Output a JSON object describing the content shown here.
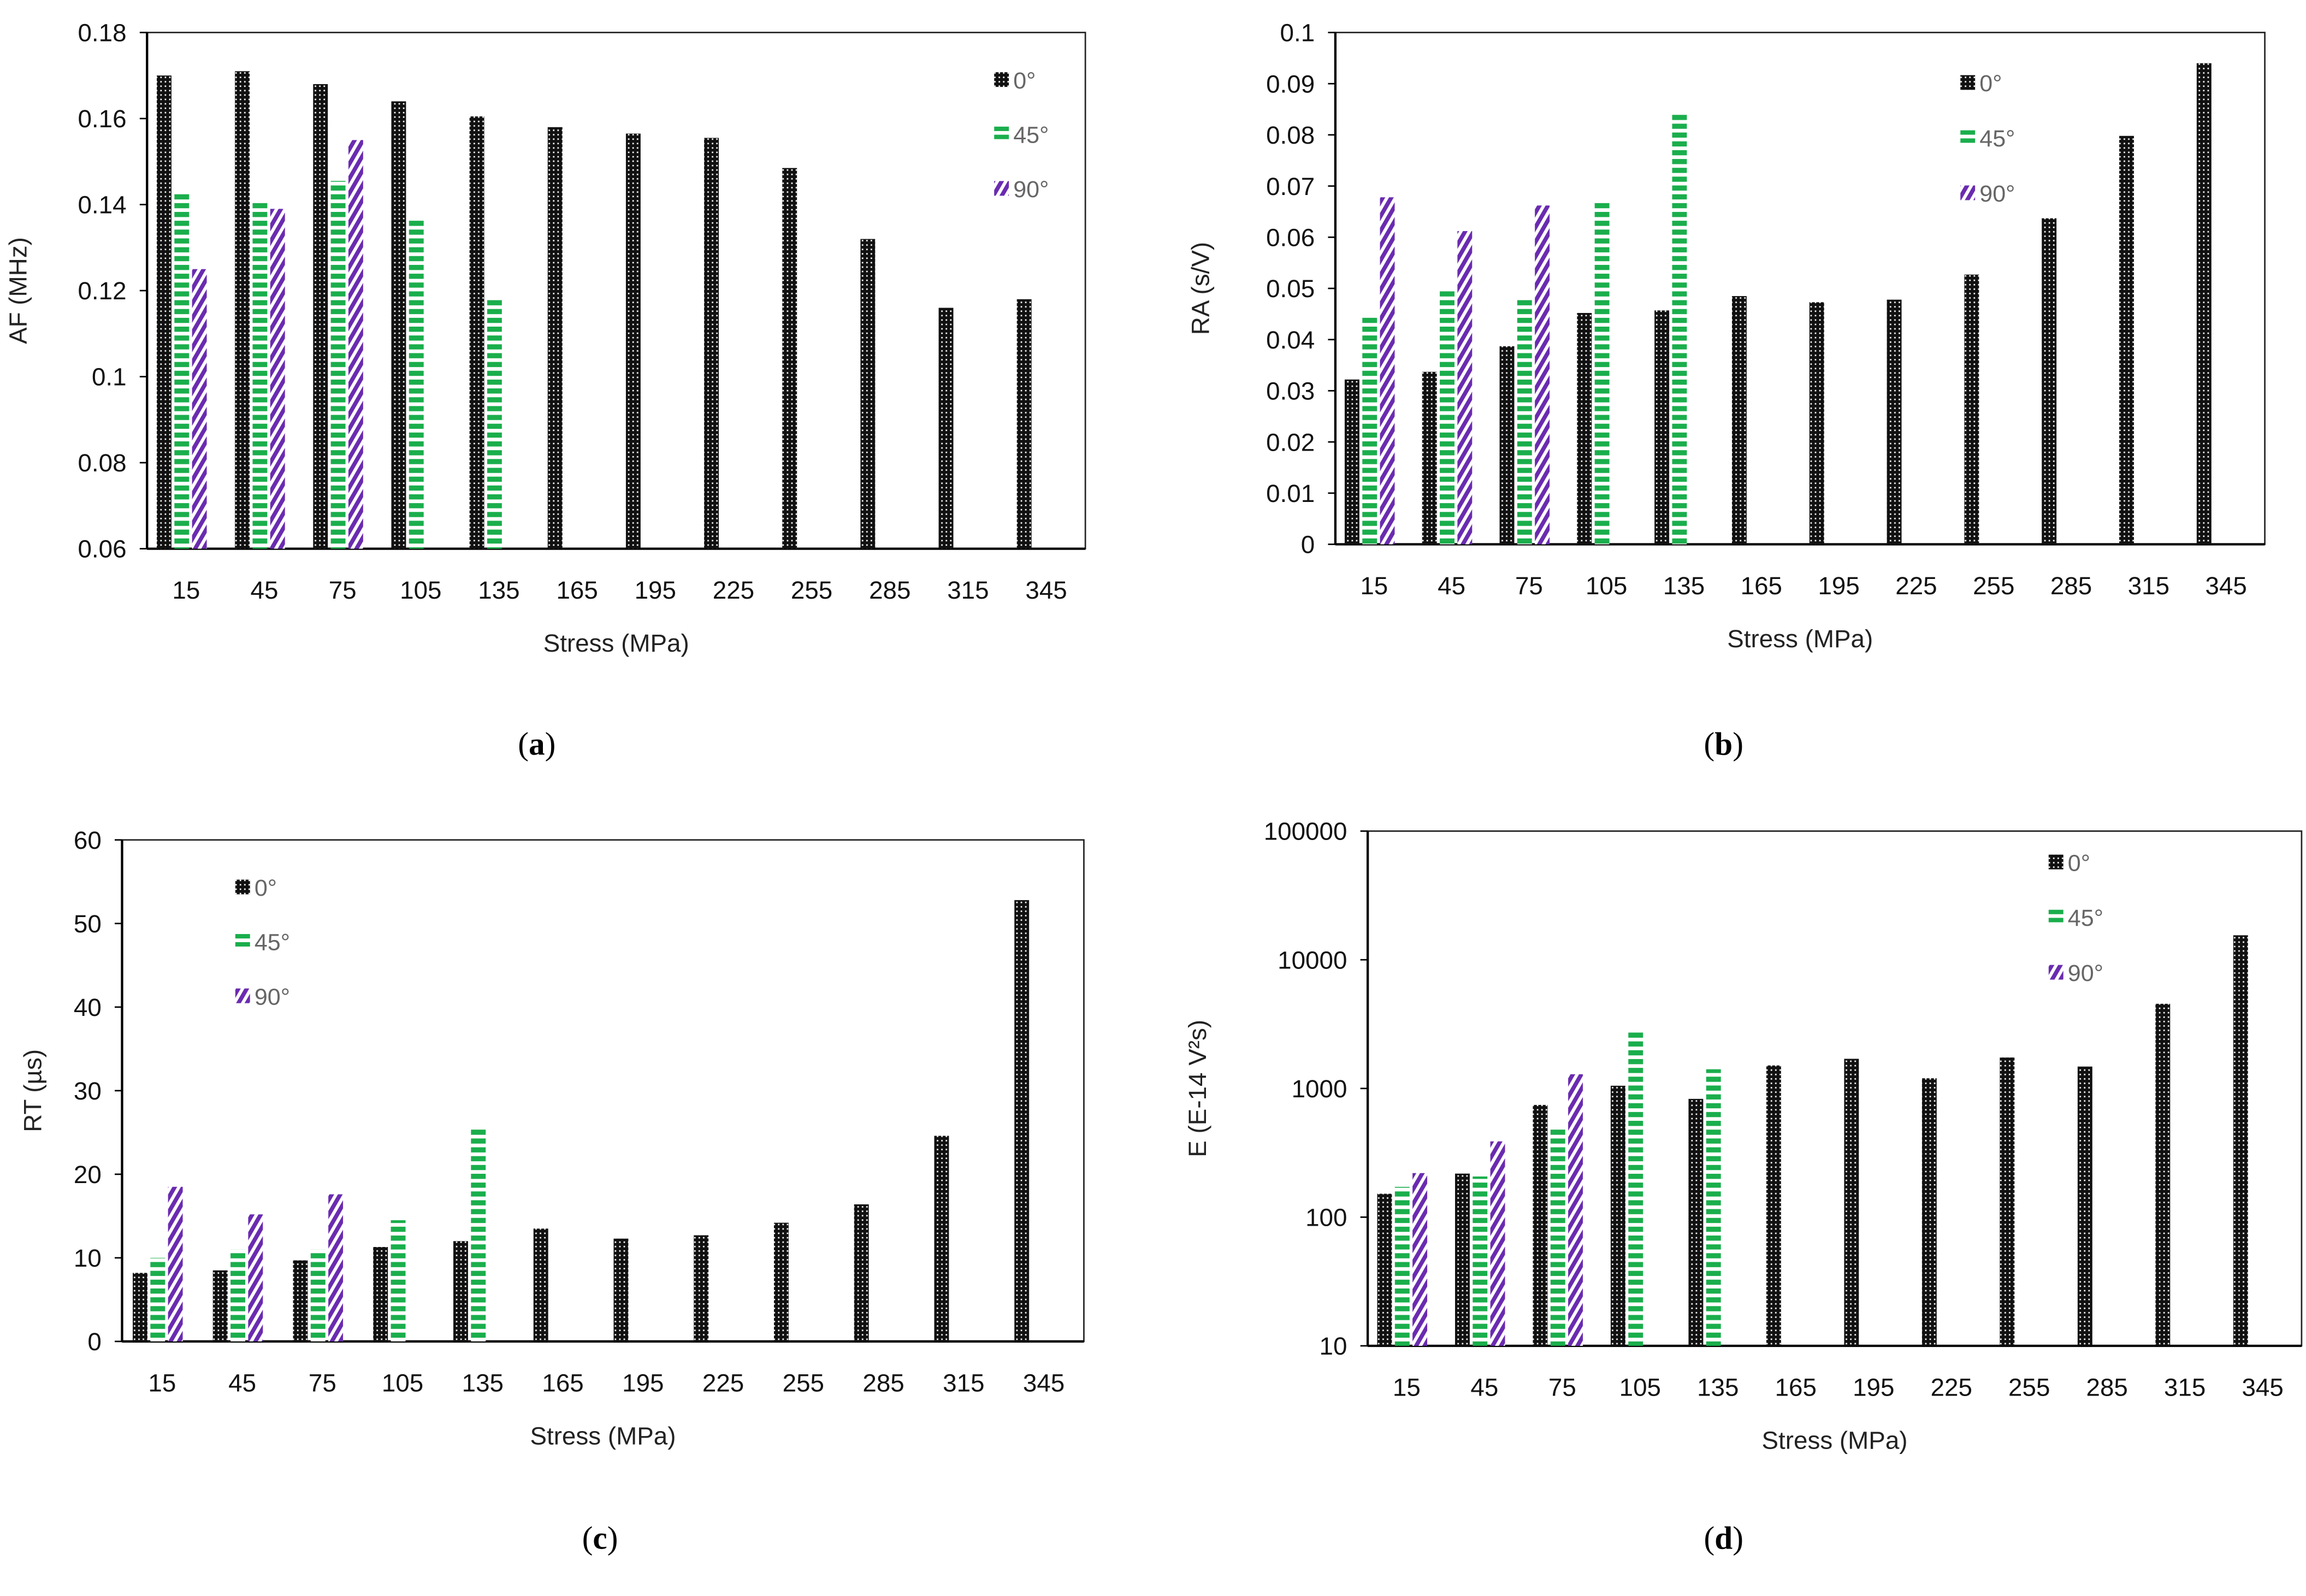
{
  "colors": {
    "s0": "#111111",
    "s45": "#1aae4c",
    "s90": "#6a2bb0",
    "axis": "#222222"
  },
  "chart_data": [
    {
      "id": "a",
      "type": "bar",
      "caption": "a",
      "title": "",
      "xlabel": "Stress (MPa)",
      "ylabel": "AF (MHz)",
      "scale": "linear",
      "ylim": [
        0.06,
        0.18
      ],
      "yticks": [
        "0.06",
        "0.08",
        "0.1",
        "0.12",
        "0.14",
        "0.16",
        "0.18"
      ],
      "legend_position": "top-right",
      "categories": [
        "15",
        "45",
        "75",
        "105",
        "135",
        "165",
        "195",
        "225",
        "255",
        "285",
        "315",
        "345"
      ],
      "series": [
        {
          "name": "0°",
          "values": [
            0.17,
            0.171,
            0.168,
            0.164,
            0.1605,
            0.158,
            0.1565,
            0.1555,
            0.1485,
            0.132,
            0.116,
            0.118
          ]
        },
        {
          "name": "45°",
          "values": [
            0.143,
            0.141,
            0.1455,
            0.1365,
            0.118,
            null,
            null,
            null,
            null,
            null,
            null,
            null
          ]
        },
        {
          "name": "90°",
          "values": [
            0.125,
            0.139,
            0.155,
            null,
            null,
            null,
            null,
            null,
            null,
            null,
            null,
            null
          ]
        }
      ]
    },
    {
      "id": "b",
      "type": "bar",
      "caption": "b",
      "title": "",
      "xlabel": "Stress (MPa)",
      "ylabel": "RA (s/V)",
      "scale": "linear",
      "ylim": [
        0,
        0.1
      ],
      "yticks": [
        "0",
        "0.01",
        "0.02",
        "0.03",
        "0.04",
        "0.05",
        "0.06",
        "0.07",
        "0.08",
        "0.09",
        "0.1"
      ],
      "legend_position": "top-right",
      "categories": [
        "15",
        "45",
        "75",
        "105",
        "135",
        "165",
        "195",
        "225",
        "255",
        "285",
        "315",
        "345"
      ],
      "series": [
        {
          "name": "0°",
          "values": [
            0.0322,
            0.0337,
            0.0387,
            0.0452,
            0.0457,
            0.0485,
            0.0473,
            0.0478,
            0.0527,
            0.0637,
            0.0798,
            0.094
          ]
        },
        {
          "name": "45°",
          "values": [
            0.0443,
            0.0501,
            0.0482,
            0.0669,
            0.0843,
            null,
            null,
            null,
            null,
            null,
            null,
            null
          ]
        },
        {
          "name": "90°",
          "values": [
            0.0678,
            0.0612,
            0.0662,
            null,
            null,
            null,
            null,
            null,
            null,
            null,
            null,
            null
          ]
        }
      ]
    },
    {
      "id": "c",
      "type": "bar",
      "caption": "c",
      "title": "",
      "xlabel": "Stress (MPa)",
      "ylabel": "RT (µs)",
      "scale": "linear",
      "ylim": [
        0,
        60
      ],
      "yticks": [
        "0",
        "10",
        "20",
        "30",
        "40",
        "50",
        "60"
      ],
      "legend_position": "top-left",
      "categories": [
        "15",
        "45",
        "75",
        "105",
        "135",
        "165",
        "195",
        "225",
        "255",
        "285",
        "315",
        "345"
      ],
      "series": [
        {
          "name": "0°",
          "values": [
            8.2,
            8.5,
            9.7,
            11.3,
            12.0,
            13.5,
            12.3,
            12.7,
            14.2,
            16.4,
            24.6,
            52.8
          ]
        },
        {
          "name": "45°",
          "values": [
            10.0,
            11.0,
            11.0,
            14.5,
            25.7,
            null,
            null,
            null,
            null,
            null,
            null,
            null
          ]
        },
        {
          "name": "90°",
          "values": [
            18.5,
            15.2,
            17.6,
            null,
            null,
            null,
            null,
            null,
            null,
            null,
            null,
            null
          ]
        }
      ]
    },
    {
      "id": "d",
      "type": "bar",
      "caption": "d",
      "title": "",
      "xlabel": "Stress (MPa)",
      "ylabel": "E (E-14 V²s)",
      "scale": "log",
      "ylim": [
        10,
        100000
      ],
      "yticks": [
        "10",
        "100",
        "1000",
        "10000",
        "100000"
      ],
      "legend_position": "top-right",
      "categories": [
        "15",
        "45",
        "75",
        "105",
        "135",
        "165",
        "195",
        "225",
        "255",
        "285",
        "315",
        "345"
      ],
      "series": [
        {
          "name": "0°",
          "values": [
            152,
            218,
            745,
            1050,
            830,
            1510,
            1700,
            1200,
            1740,
            1480,
            4550,
            15500
          ]
        },
        {
          "name": "45°",
          "values": [
            172,
            207,
            490,
            2820,
            1410,
            null,
            null,
            null,
            null,
            null,
            null,
            null
          ]
        },
        {
          "name": "90°",
          "values": [
            220,
            388,
            1290,
            null,
            null,
            null,
            null,
            null,
            null,
            null,
            null,
            null
          ]
        }
      ]
    }
  ]
}
